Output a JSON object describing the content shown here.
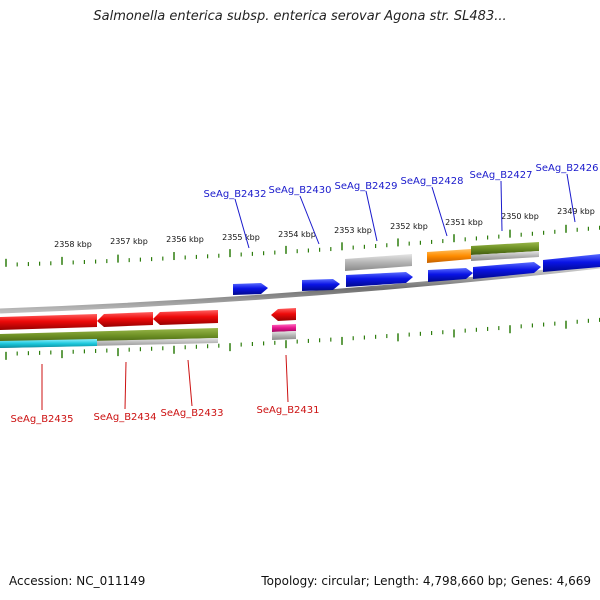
{
  "title": "Salmonella enterica subsp. enterica serovar Agona str. SL483...",
  "footer": {
    "accession": "Accession: NC_011149",
    "summary": "Topology: circular; Length: 4,798,660 bp; Genes: 4,669"
  },
  "colors": {
    "backbone": "#8c8c8c",
    "tick": "#2e7d0e",
    "forward_label": "#1a1acc",
    "reverse_label": "#cc1111",
    "cds_forward": "#0a14e6",
    "cds_reverse": "#ee0a0a",
    "olive": "#6b8e23",
    "gray": "#b4b4b4",
    "orange": "#ff8c00",
    "cyan": "#1ec8dc",
    "magenta": "#e6148c"
  },
  "kbp_ticks": [
    "2358 kbp",
    "2357 kbp",
    "2356 kbp",
    "2355 kbp",
    "2354 kbp",
    "2353 kbp",
    "2352 kbp",
    "2351 kbp",
    "2350 kbp",
    "2349 kbp"
  ],
  "forward_genes": [
    "SeAg_B2432",
    "SeAg_B2430",
    "SeAg_B2429",
    "SeAg_B2428",
    "SeAg_B2427",
    "SeAg_B2426"
  ],
  "reverse_genes": [
    "SeAg_B2435",
    "SeAg_B2434",
    "SeAg_B2433",
    "SeAg_B2431"
  ]
}
